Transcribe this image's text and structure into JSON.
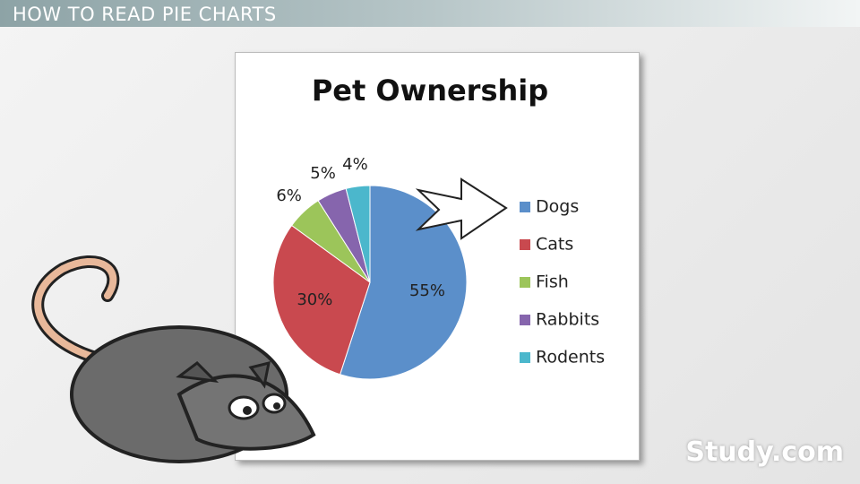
{
  "header": {
    "title": "HOW TO READ PIE CHARTS"
  },
  "watermark": "Study.com",
  "chart_data": {
    "type": "pie",
    "title": "Pet Ownership",
    "categories": [
      "Dogs",
      "Cats",
      "Fish",
      "Rabbits",
      "Rodents"
    ],
    "values": [
      55,
      30,
      6,
      5,
      4
    ],
    "value_labels": [
      "55%",
      "30%",
      "6%",
      "5%",
      "4%"
    ],
    "colors": [
      "#5b8fca",
      "#c9494f",
      "#9cc55a",
      "#8665ad",
      "#4bb7cc"
    ],
    "legend": "right"
  }
}
